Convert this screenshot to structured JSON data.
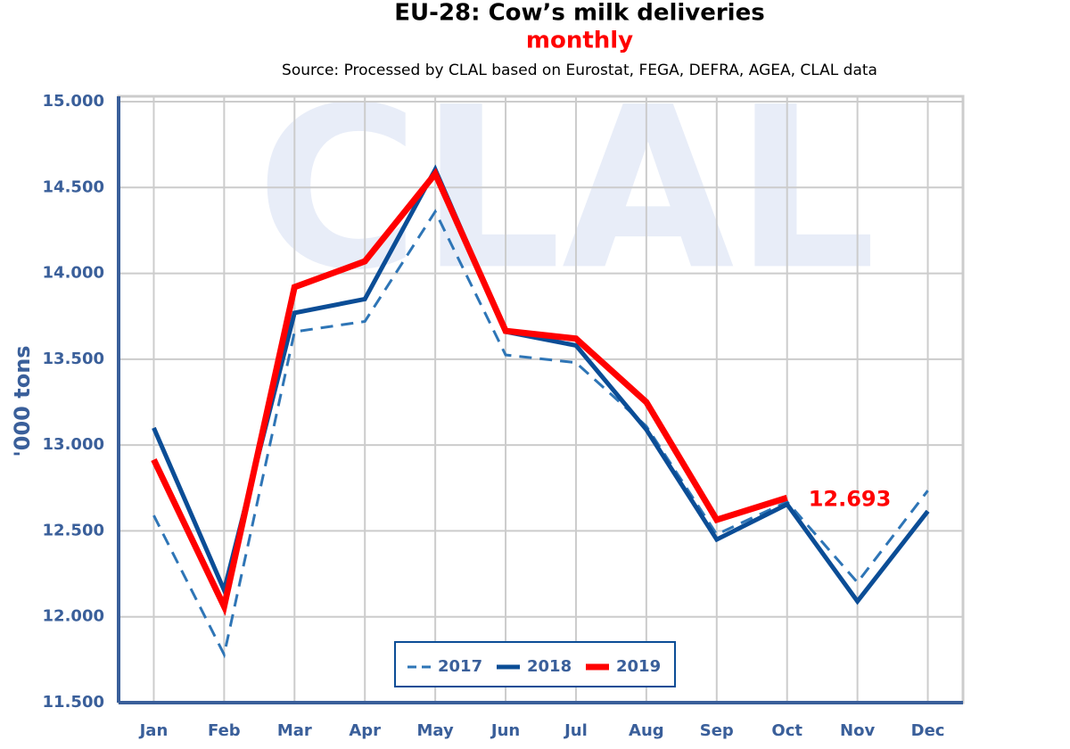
{
  "chart_data": {
    "type": "line",
    "title": "EU-28: Cow’s milk deliveries",
    "subtitle": "monthly",
    "source": "Source: Processed by CLAL based on Eurostat, FEGA, DEFRA, AGEA, CLAL data",
    "watermark": "CLAL",
    "y_label": "'000 tons",
    "categories": [
      "Jan",
      "Feb",
      "Mar",
      "Apr",
      "May",
      "Jun",
      "Jul",
      "Aug",
      "Sep",
      "Oct",
      "Nov",
      "Dec"
    ],
    "series": [
      {
        "name": "2017",
        "color": "#2e75b6",
        "dashed": true,
        "width": 3,
        "values": [
          12590,
          11780,
          13660,
          13720,
          14360,
          13525,
          13480,
          13110,
          12480,
          12670,
          12200,
          12735
        ]
      },
      {
        "name": "2018",
        "color": "#0b4d96",
        "dashed": false,
        "width": 5,
        "values": [
          13100,
          12155,
          13770,
          13850,
          14605,
          13660,
          13580,
          13090,
          12450,
          12655,
          12090,
          12615
        ]
      },
      {
        "name": "2019",
        "color": "#ff0000",
        "dashed": false,
        "width": 7,
        "values": [
          12915,
          12060,
          13920,
          14070,
          14580,
          13665,
          13620,
          13250,
          12565,
          12693,
          null,
          null
        ],
        "value_labels": [
          null,
          null,
          null,
          null,
          null,
          null,
          null,
          null,
          null,
          "12.693",
          null,
          null
        ]
      }
    ],
    "ylim": [
      11500,
      15000
    ],
    "yticks": [
      {
        "value": 11500,
        "label": "11.500"
      },
      {
        "value": 12000,
        "label": "12.000"
      },
      {
        "value": 12500,
        "label": "12.500"
      },
      {
        "value": 13000,
        "label": "13.000"
      },
      {
        "value": 13500,
        "label": "13.500"
      },
      {
        "value": 14000,
        "label": "14.000"
      },
      {
        "value": 14500,
        "label": "14.500"
      },
      {
        "value": 15000,
        "label": "15.000"
      }
    ],
    "grid": true,
    "legend": "bottom"
  }
}
